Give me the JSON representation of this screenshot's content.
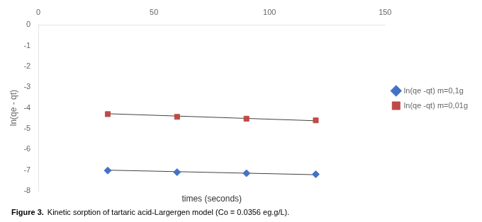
{
  "chart_data": {
    "type": "scatter",
    "xlabel": "times (seconds)",
    "ylabel": "ln(qe - qt)",
    "annotations": [
      "Figure 3.",
      "Kinetic sorption of tartaric acid-Largergen model (Co = 0.0356 eg.g/L)."
    ],
    "series": [
      {
        "type": "line",
        "color": "#404040",
        "marker": "none",
        "line_style": "solid",
        "x": [
          30,
          120
        ],
        "values": [
          -7.0,
          -7.22
        ]
      },
      {
        "type": "line",
        "color": "#404040",
        "marker": "none",
        "line_style": "solid",
        "x": [
          30,
          120
        ],
        "values": [
          -4.28,
          -4.62
        ]
      },
      {
        "type": "scatter",
        "name": "ln(qe -qt) m=0,1g",
        "color": "#4472C4",
        "marker": "diamond",
        "x": [
          30,
          60,
          90,
          120
        ],
        "values": [
          -7.02,
          -7.1,
          -7.15,
          -7.2
        ]
      },
      {
        "type": "scatter",
        "name": "ln(qe -qt) m=0,01g",
        "color": "#BE4B48",
        "marker": "square",
        "x": [
          30,
          60,
          90,
          120
        ],
        "values": [
          -4.3,
          -4.43,
          -4.52,
          -4.6
        ]
      }
    ],
    "xlim": [
      0,
      150
    ],
    "xticks": [
      0,
      50,
      100,
      150
    ],
    "ylim": [
      -8,
      0
    ],
    "yticks": [
      0,
      -1,
      -2,
      -3,
      -4,
      -5,
      -6,
      -7,
      -8
    ],
    "grid": false,
    "legend": "right"
  }
}
